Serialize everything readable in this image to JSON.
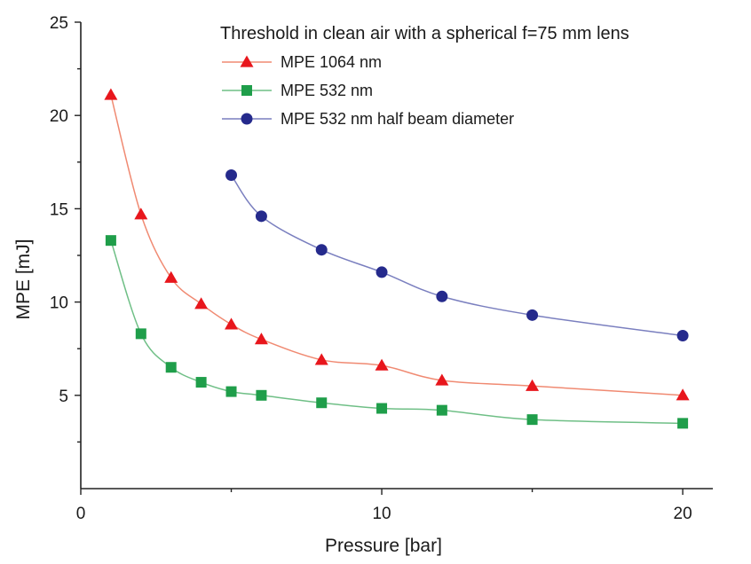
{
  "chart_data": {
    "type": "line",
    "title": "",
    "xlabel": "Pressure [bar]",
    "ylabel": "MPE [mJ]",
    "xlim": [
      0,
      21
    ],
    "ylim": [
      0,
      25
    ],
    "xticks": [
      0,
      10,
      20
    ],
    "yticks": [
      5,
      10,
      15,
      20,
      25
    ],
    "grid": false,
    "legend_position": "top-right",
    "legend_title": "Threshold in clean air with a spherical f=75 mm lens",
    "series": [
      {
        "name": "MPE 1064 nm",
        "marker": "triangle",
        "color": "#e8161c",
        "line_color": "#f08a72",
        "x": [
          1,
          2,
          3,
          4,
          5,
          6,
          8,
          10,
          12,
          15,
          20
        ],
        "y": [
          21.1,
          14.7,
          11.3,
          9.9,
          8.8,
          8.0,
          6.9,
          6.6,
          5.8,
          5.5,
          5.0
        ]
      },
      {
        "name": "MPE 532 nm",
        "marker": "square",
        "color": "#1f9e4a",
        "line_color": "#6fbf86",
        "x": [
          1,
          2,
          3,
          4,
          5,
          6,
          8,
          10,
          12,
          15,
          20
        ],
        "y": [
          13.3,
          8.3,
          6.5,
          5.7,
          5.2,
          5.0,
          4.6,
          4.3,
          4.2,
          3.7,
          3.5
        ]
      },
      {
        "name": "MPE 532 nm half beam diameter",
        "marker": "circle",
        "color": "#252a8c",
        "line_color": "#7a7fbf",
        "x": [
          5,
          6,
          8,
          10,
          12,
          15,
          20
        ],
        "y": [
          16.8,
          14.6,
          12.8,
          11.6,
          10.3,
          9.3,
          8.2
        ]
      }
    ]
  }
}
